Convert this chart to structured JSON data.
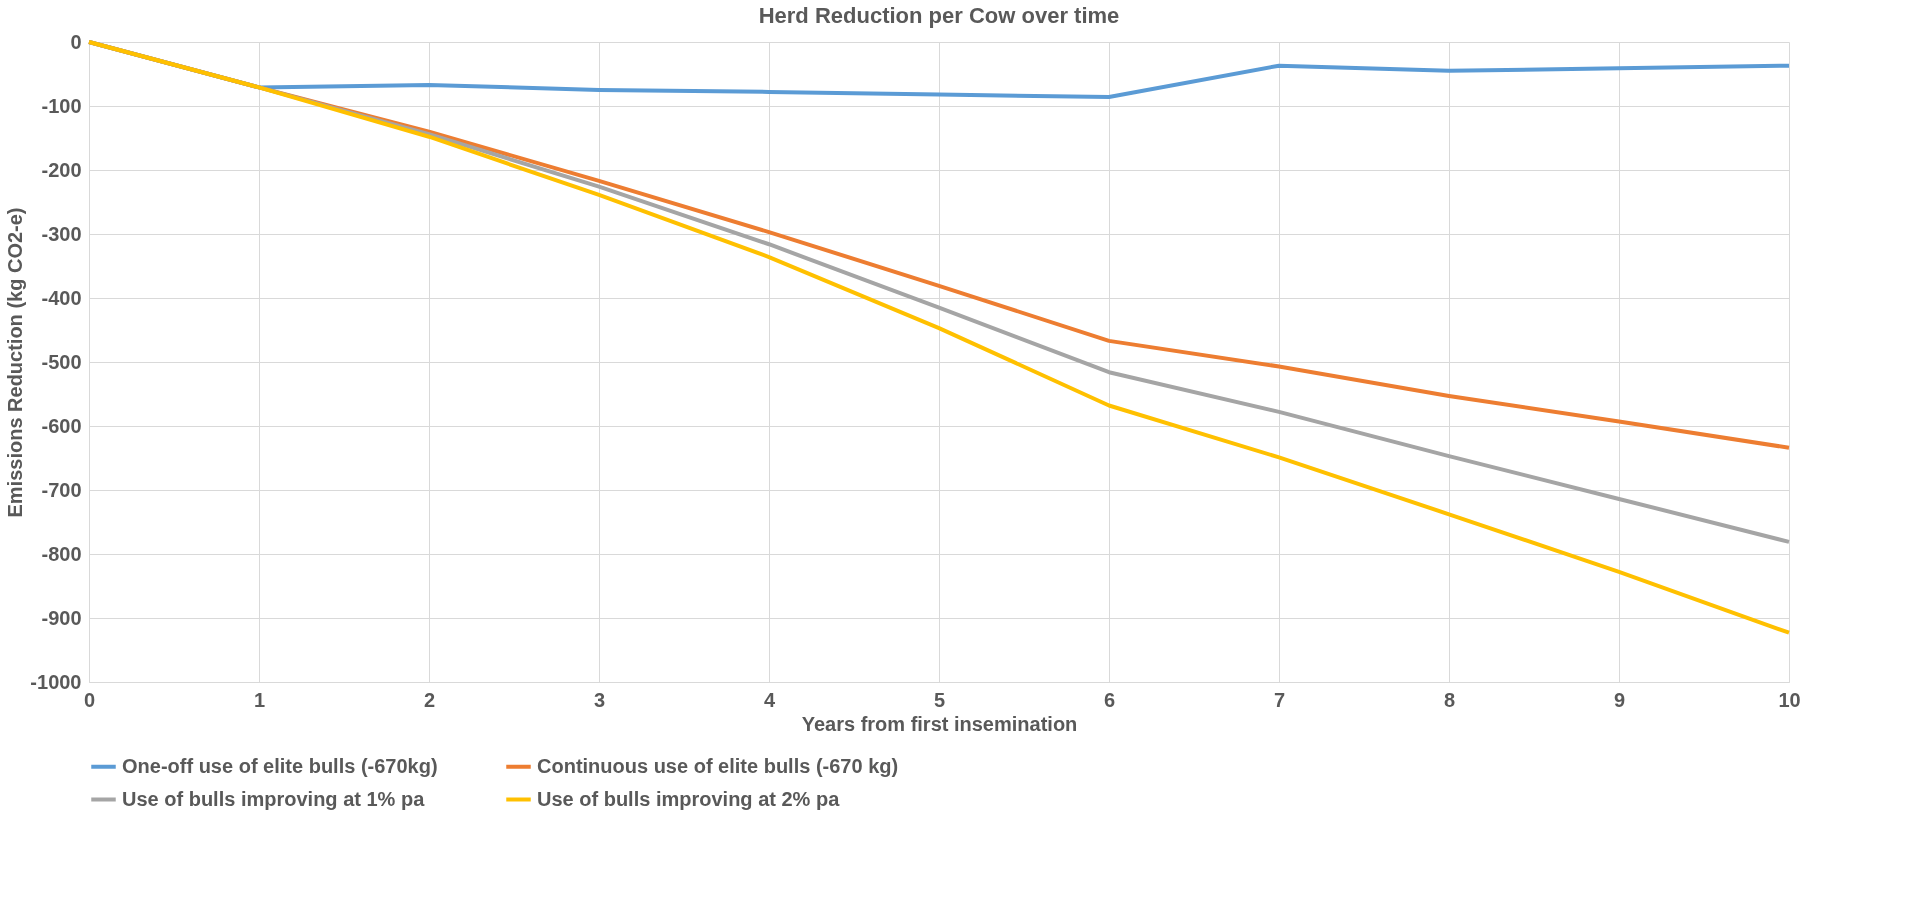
{
  "chart_data": {
    "type": "line",
    "title": "Herd Reduction per Cow over time",
    "xlabel": "Years from first insemination",
    "ylabel": "Emissions Reduction (kg CO2-e)",
    "x": [
      0,
      1,
      2,
      3,
      4,
      5,
      6,
      7,
      8,
      9,
      10
    ],
    "series": [
      {
        "name": "One-off use of elite bulls (-670kg)",
        "color": "#5b9bd5",
        "values": [
          0,
          -71,
          -67,
          -75,
          -78,
          -82,
          -86,
          -37,
          -45,
          -41,
          -37
        ]
      },
      {
        "name": "Continuous use of elite bulls (-670 kg)",
        "color": "#ed7d31",
        "values": [
          0,
          -71,
          -140,
          -217,
          -297,
          -381,
          -467,
          -507,
          -553,
          -593,
          -634
        ]
      },
      {
        "name": "Use of bulls improving at 1% pa",
        "color": "#a5a5a5",
        "values": [
          0,
          -71,
          -144,
          -226,
          -316,
          -415,
          -516,
          -578,
          -647,
          -714,
          -781
        ]
      },
      {
        "name": "Use of bulls improving at 2% pa",
        "color": "#ffc000",
        "values": [
          0,
          -71,
          -148,
          -239,
          -336,
          -447,
          -568,
          -649,
          -738,
          -828,
          -923
        ]
      }
    ],
    "xlim": [
      0,
      10
    ],
    "xticks": [
      0,
      1,
      2,
      3,
      4,
      5,
      6,
      7,
      8,
      9,
      10
    ],
    "ylim": [
      -1000,
      0
    ],
    "yticks": [
      -1000,
      -900,
      -800,
      -700,
      -600,
      -500,
      -400,
      -300,
      -200,
      -100,
      0
    ],
    "grid": true,
    "legend": "bottom",
    "marker": "none",
    "line_style": "solid"
  }
}
